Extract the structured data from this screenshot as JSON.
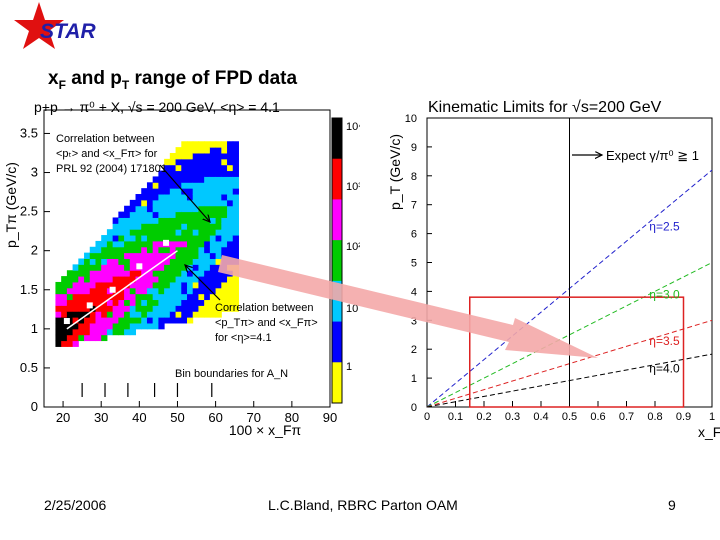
{
  "logo_text": "STAR",
  "slide_title": "x",
  "slide_title_sub1": "F",
  "slide_title_mid": " and p",
  "slide_title_sub2": "T",
  "slide_title_end": " range of FPD data",
  "footer": {
    "date": "2/25/2006",
    "center": "L.C.Bland, RBRC Parton OAM",
    "page": "9"
  },
  "colors": {
    "logo_star": "#e01010",
    "logo_text": "#1f1fa8",
    "arrow": "#f4a8a8"
  },
  "chart_data": [
    {
      "type": "heatmap",
      "title": "p+p → π⁰ + X, √s = 200 GeV, <η> = 4.1",
      "xlabel": "100 × x_Fπ",
      "ylabel": "p_Tπ (GeV/c)",
      "xlim": [
        15,
        90
      ],
      "ylim": [
        0,
        3.8
      ],
      "x_ticks": [
        "20",
        "30",
        "40",
        "50",
        "60",
        "70",
        "80",
        "90"
      ],
      "y_ticks": [
        "0",
        "0.5",
        "1",
        "1.5",
        "2",
        "2.5",
        "3",
        "3.5"
      ],
      "colorbar_ticks": [
        "10⁴",
        "10³",
        "10²",
        "10",
        "1"
      ],
      "colorscale": [
        "#000000",
        "#ff0000",
        "#ff00ff",
        "#00cc00",
        "#00c8ff",
        "#0000ff",
        "#ffff00"
      ],
      "annotations": {
        "corr1": [
          "Correlation between",
          "<pₜ> and <x_Fπ> for",
          "PRL 92 (2004) 171801"
        ],
        "corr2": [
          "Correlation between",
          "<p_Tπ> and <x_Fπ>",
          "for <η>=4.1"
        ],
        "bins": "Bin boundaries for A_N"
      },
      "bin_boundaries": [
        25,
        31,
        37,
        44,
        50,
        59
      ],
      "profile_points": [
        {
          "x": 21,
          "y": 1.1
        },
        {
          "x": 27,
          "y": 1.3
        },
        {
          "x": 33,
          "y": 1.5
        },
        {
          "x": 40,
          "y": 1.8
        },
        {
          "x": 47,
          "y": 2.1
        }
      ],
      "fit_line": [
        [
          21,
          1.0
        ],
        [
          50,
          2.0
        ]
      ]
    },
    {
      "type": "line",
      "title": "Kinematic Limits for √s=200 GeV",
      "xlabel": "x_F",
      "ylabel": "p_T (GeV/c)",
      "xlim": [
        0,
        1
      ],
      "ylim": [
        0,
        10
      ],
      "x_ticks": [
        "0",
        "0.1",
        "0.2",
        "0.3",
        "0.4",
        "0.5",
        "0.6",
        "0.7",
        "0.8",
        "0.9",
        "1"
      ],
      "y_ticks": [
        "0",
        "1",
        "2",
        "3",
        "4",
        "5",
        "6",
        "7",
        "8",
        "9",
        "10"
      ],
      "series": [
        {
          "name": "η=2.5",
          "color": "#2222cc",
          "x": [
            0,
            1
          ],
          "y": [
            0,
            8.2
          ]
        },
        {
          "name": "η=3.0",
          "color": "#22bb22",
          "x": [
            0,
            1
          ],
          "y": [
            0,
            5.0
          ]
        },
        {
          "name": "η=3.5",
          "color": "#dd2222",
          "x": [
            0,
            1
          ],
          "y": [
            0,
            3.0
          ]
        },
        {
          "name": "η=4.0",
          "color": "#000000",
          "x": [
            0,
            1
          ],
          "y": [
            0,
            1.83
          ]
        }
      ],
      "vertical_line_x": 0.5,
      "annotation": "Expect γ/π⁰ ≧ 1",
      "highlight_box": {
        "x": [
          0.15,
          0.9
        ],
        "y": [
          0,
          3.8
        ]
      }
    }
  ]
}
